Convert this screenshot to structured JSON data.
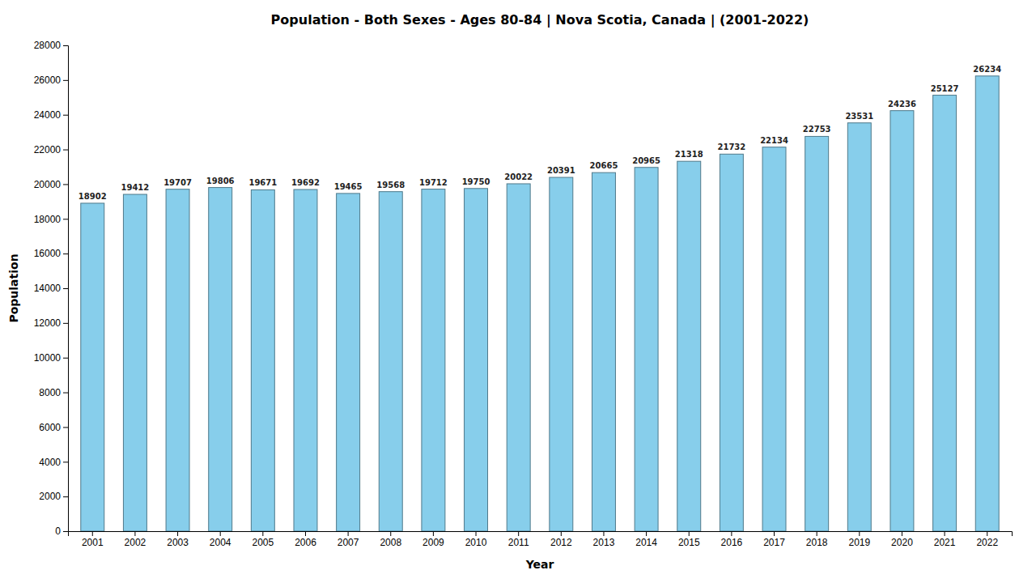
{
  "chart_data": {
    "type": "bar",
    "title": "Population - Both Sexes - Ages 80-84 | Nova Scotia, Canada |  (2001-2022)",
    "x_label": "Year",
    "y_label": "Population",
    "categories": [
      "2001",
      "2002",
      "2003",
      "2004",
      "2005",
      "2006",
      "2007",
      "2008",
      "2009",
      "2010",
      "2011",
      "2012",
      "2013",
      "2014",
      "2015",
      "2016",
      "2017",
      "2018",
      "2019",
      "2020",
      "2021",
      "2022"
    ],
    "values": [
      18902,
      19412,
      19707,
      19806,
      19671,
      19692,
      19465,
      19568,
      19712,
      19750,
      20022,
      20391,
      20665,
      20965,
      21318,
      21732,
      22134,
      22753,
      23531,
      24236,
      25127,
      26234
    ],
    "color": "#87CEEB",
    "ylim": [
      0,
      28000
    ],
    "yticks": [
      0,
      2000,
      4000,
      6000,
      8000,
      10000,
      12000,
      14000,
      16000,
      18000,
      20000,
      22000,
      24000,
      26000,
      28000
    ],
    "grid": false,
    "data_labels": true
  }
}
